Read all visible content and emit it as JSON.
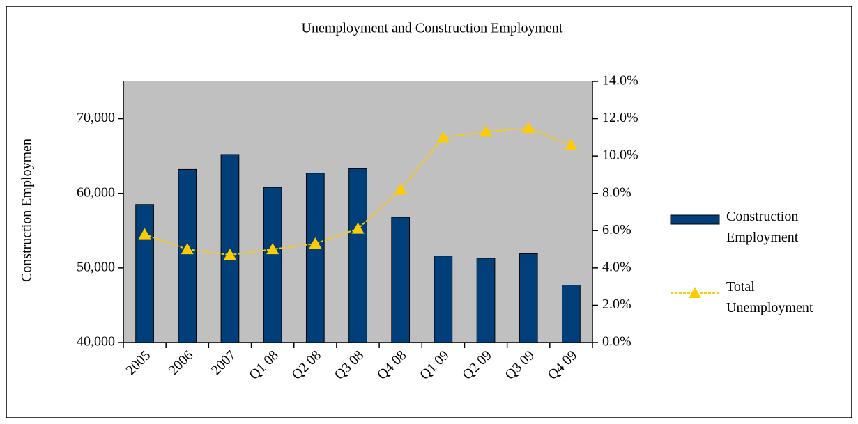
{
  "chart_data": {
    "type": "bar-line",
    "title": "Unemployment and Construction Employment",
    "ylabel": "Construction Employmen",
    "categories": [
      "2005",
      "2006",
      "2007",
      "Q1 08",
      "Q2 08",
      "Q3 08",
      "Q4 08",
      "Q1 09",
      "Q2 09",
      "Q3 09",
      "Q4 09"
    ],
    "series": [
      {
        "name": "Construction Employment",
        "type": "bar",
        "color": "#003f7a",
        "axis": "y",
        "values": [
          58500,
          63200,
          65200,
          60800,
          62700,
          63300,
          56800,
          51600,
          51300,
          51900,
          47700
        ]
      },
      {
        "name": "Total Unemployment",
        "type": "line",
        "color": "#ffcc00",
        "axis": "y2",
        "values": [
          5.8,
          5.0,
          4.7,
          5.0,
          5.3,
          6.1,
          8.2,
          11.0,
          11.3,
          11.5,
          10.6
        ]
      }
    ],
    "ylim": [
      40000,
      75000
    ],
    "yticks": [
      {
        "value": 40000,
        "label": "40,000"
      },
      {
        "value": 50000,
        "label": "50,000"
      },
      {
        "value": 60000,
        "label": "60,000"
      },
      {
        "value": 70000,
        "label": "70,000"
      }
    ],
    "y2lim": [
      0,
      14
    ],
    "y2ticks": [
      {
        "value": 0,
        "label": "0.0%"
      },
      {
        "value": 2,
        "label": "2.0%"
      },
      {
        "value": 4,
        "label": "4.0%"
      },
      {
        "value": 6,
        "label": "6.0%"
      },
      {
        "value": 8,
        "label": "8.0%"
      },
      {
        "value": 10,
        "label": "10.0%"
      },
      {
        "value": 12,
        "label": "12.0%"
      },
      {
        "value": 14,
        "label": "14.0%"
      }
    ],
    "plot_background": "#c0c0c0",
    "legend": "right"
  }
}
